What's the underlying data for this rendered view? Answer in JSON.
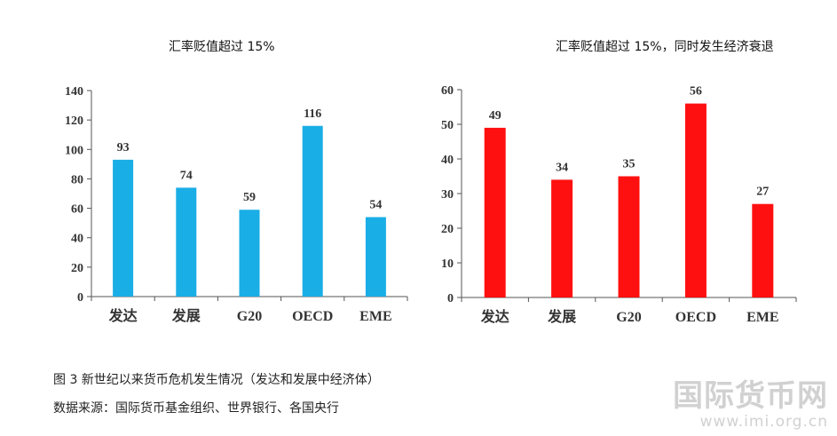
{
  "chart_data": [
    {
      "type": "bar",
      "title": "汇率贬值超过 15%",
      "categories": [
        "发达",
        "发展",
        "G20",
        "OECD",
        "EME"
      ],
      "values": [
        93,
        74,
        59,
        116,
        54
      ],
      "yticks": [
        0,
        20,
        40,
        60,
        80,
        100,
        120,
        140
      ],
      "ylim": [
        0,
        140
      ],
      "color": "#1AAEE6",
      "xlabel": "",
      "ylabel": "",
      "grid": false
    },
    {
      "type": "bar",
      "title": "汇率贬值超过 15%，同时发生经济衰退",
      "categories": [
        "发达",
        "发展",
        "G20",
        "OECD",
        "EME"
      ],
      "values": [
        49,
        34,
        35,
        56,
        27
      ],
      "yticks": [
        0,
        10,
        20,
        30,
        40,
        50,
        60
      ],
      "ylim": [
        0,
        60
      ],
      "color": "#FF1010",
      "xlabel": "",
      "ylabel": "",
      "grid": false
    }
  ],
  "caption": {
    "line1": "图 3   新世纪以来货币危机发生情况（发达和发展中经济体）",
    "line2": "数据来源：国际货币基金组织、世界银行、各国央行"
  },
  "watermark": {
    "name": "国际货币网",
    "url": "www.imi.org.cn"
  }
}
